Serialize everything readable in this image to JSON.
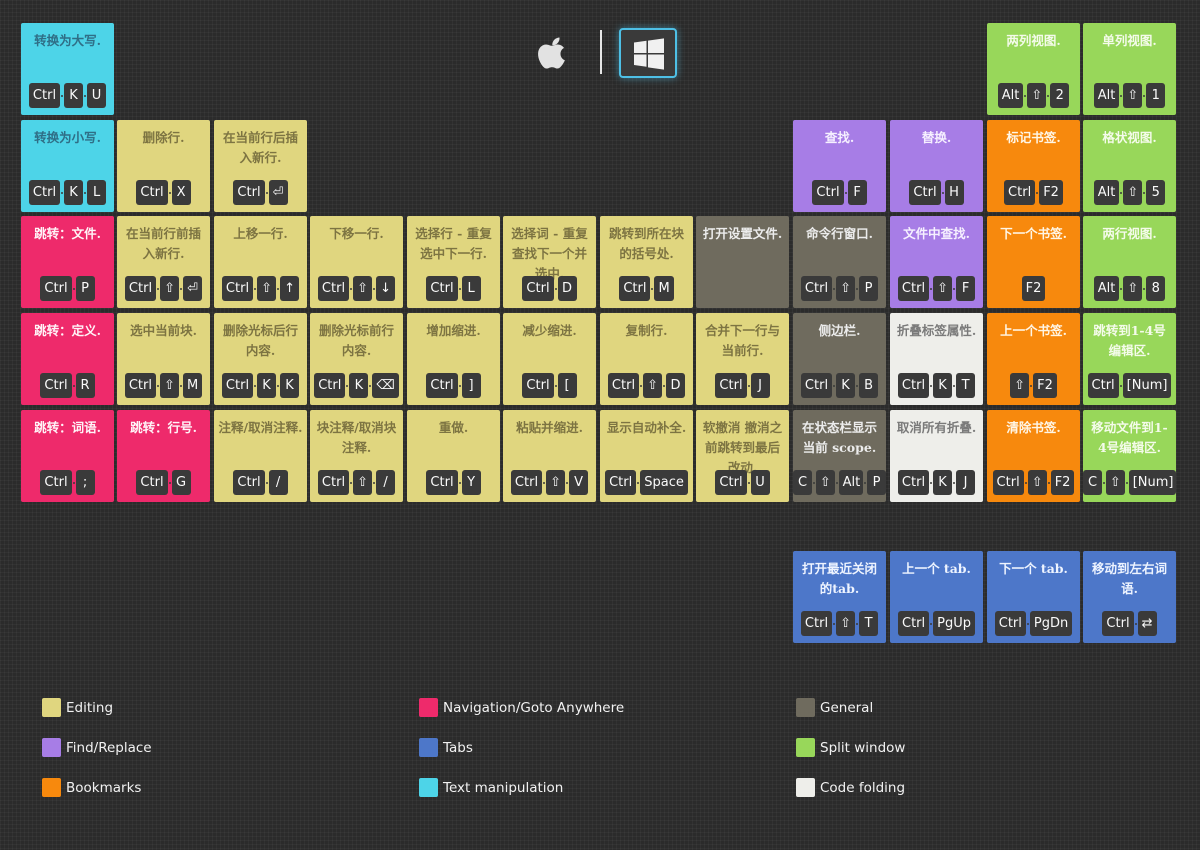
{
  "colors": {
    "editing": "#e0d67f",
    "navigation": "#ee2a6b",
    "general": "#6f6b5e",
    "find_replace": "#a77de6",
    "tabs": "#4d77c9",
    "split_window": "#98d75a",
    "bookmarks": "#f7890d",
    "text_manipulation": "#4dd4e8",
    "code_folding": "#eeeeea"
  },
  "platform": {
    "options": [
      "apple-icon",
      "windows-icon"
    ],
    "selected": "windows"
  },
  "tiles": [
    {
      "id": "to-upper",
      "category": "text_manipulation",
      "title": "转换为大写.",
      "keys": [
        "Ctrl",
        "K",
        "U"
      ]
    },
    {
      "id": "split-two-columns",
      "category": "split_window",
      "title": "两列视图.",
      "keys": [
        "Alt",
        "⇧",
        "2"
      ]
    },
    {
      "id": "split-single-column",
      "category": "split_window",
      "title": "单列视图.",
      "keys": [
        "Alt",
        "⇧",
        "1"
      ]
    },
    {
      "id": "to-lower",
      "category": "text_manipulation",
      "title": "转换为小写.",
      "keys": [
        "Ctrl",
        "K",
        "L"
      ]
    },
    {
      "id": "delete-line",
      "category": "editing",
      "title": "删除行.",
      "keys": [
        "Ctrl",
        "X"
      ]
    },
    {
      "id": "insert-line-after",
      "category": "editing",
      "title": "在当前行后插入新行.",
      "keys": [
        "Ctrl",
        "⏎"
      ]
    },
    {
      "id": "find",
      "category": "find_replace",
      "title": "查找.",
      "keys": [
        "Ctrl",
        "F"
      ]
    },
    {
      "id": "replace",
      "category": "find_replace",
      "title": "替换.",
      "keys": [
        "Ctrl",
        "H"
      ]
    },
    {
      "id": "toggle-bookmark",
      "category": "bookmarks",
      "title": "标记书签.",
      "keys": [
        "Ctrl",
        "F2"
      ]
    },
    {
      "id": "split-grid",
      "category": "split_window",
      "title": "格状视图.",
      "keys": [
        "Alt",
        "⇧",
        "5"
      ]
    },
    {
      "id": "goto-file",
      "category": "navigation",
      "title": "跳转：文件.",
      "keys": [
        "Ctrl",
        "P"
      ]
    },
    {
      "id": "insert-line-before",
      "category": "editing",
      "title": "在当前行前插入新行.",
      "keys": [
        "Ctrl",
        "⇧",
        "⏎"
      ]
    },
    {
      "id": "move-line-up",
      "category": "editing",
      "title": "上移一行.",
      "keys": [
        "Ctrl",
        "⇧",
        "↑"
      ]
    },
    {
      "id": "move-line-down",
      "category": "editing",
      "title": "下移一行.",
      "keys": [
        "Ctrl",
        "⇧",
        "↓"
      ]
    },
    {
      "id": "select-line",
      "category": "editing",
      "title": "选择行 - 重复选中下一行.",
      "keys": [
        "Ctrl",
        "L"
      ]
    },
    {
      "id": "select-word",
      "category": "editing",
      "title": "选择词 - 重复查找下一个并选中.",
      "keys": [
        "Ctrl",
        "D"
      ]
    },
    {
      "id": "goto-bracket",
      "category": "editing",
      "title": "跳转到所在块的括号处.",
      "keys": [
        "Ctrl",
        "M"
      ]
    },
    {
      "id": "open-settings",
      "category": "general",
      "title": "打开设置文件.",
      "keys": []
    },
    {
      "id": "command-palette",
      "category": "general",
      "title": "命令行窗口.",
      "keys": [
        "Ctrl",
        "⇧",
        "P"
      ]
    },
    {
      "id": "find-in-files",
      "category": "find_replace",
      "title": "文件中查找.",
      "keys": [
        "Ctrl",
        "⇧",
        "F"
      ]
    },
    {
      "id": "next-bookmark",
      "category": "bookmarks",
      "title": "下一个书签.",
      "keys": [
        "F2"
      ]
    },
    {
      "id": "split-two-rows",
      "category": "split_window",
      "title": "两行视图.",
      "keys": [
        "Alt",
        "⇧",
        "8"
      ]
    },
    {
      "id": "goto-definition",
      "category": "navigation",
      "title": "跳转：定义.",
      "keys": [
        "Ctrl",
        "R"
      ]
    },
    {
      "id": "select-block",
      "category": "editing",
      "title": "选中当前块.",
      "keys": [
        "Ctrl",
        "⇧",
        "M"
      ]
    },
    {
      "id": "delete-to-eol",
      "category": "editing",
      "title": "删除光标后行内容.",
      "keys": [
        "Ctrl",
        "K",
        "K"
      ]
    },
    {
      "id": "delete-to-bol",
      "category": "editing",
      "title": "删除光标前行内容.",
      "keys": [
        "Ctrl",
        "K",
        "⌫"
      ]
    },
    {
      "id": "indent",
      "category": "editing",
      "title": "增加缩进.",
      "keys": [
        "Ctrl",
        "]"
      ]
    },
    {
      "id": "outdent",
      "category": "editing",
      "title": "减少缩进.",
      "keys": [
        "Ctrl",
        "["
      ]
    },
    {
      "id": "duplicate-line",
      "category": "editing",
      "title": "复制行.",
      "keys": [
        "Ctrl",
        "⇧",
        "D"
      ]
    },
    {
      "id": "join-lines",
      "category": "editing",
      "title": "合并下一行与当前行.",
      "keys": [
        "Ctrl",
        "J"
      ]
    },
    {
      "id": "toggle-sidebar",
      "category": "general",
      "title": "侧边栏.",
      "keys": [
        "Ctrl",
        "K",
        "B"
      ]
    },
    {
      "id": "fold-tag-attributes",
      "category": "code_folding",
      "title": "折叠标签属性.",
      "keys": [
        "Ctrl",
        "K",
        "T"
      ]
    },
    {
      "id": "prev-bookmark",
      "category": "bookmarks",
      "title": "上一个书签.",
      "keys": [
        "⇧",
        "F2"
      ]
    },
    {
      "id": "focus-group-1-4",
      "category": "split_window",
      "title": "跳转到1-4号编辑区.",
      "keys": [
        "Ctrl",
        "[Num]"
      ]
    },
    {
      "id": "goto-symbol",
      "category": "navigation",
      "title": "跳转：词语.",
      "keys": [
        "Ctrl",
        ";"
      ]
    },
    {
      "id": "goto-line",
      "category": "navigation",
      "title": "跳转：行号.",
      "keys": [
        "Ctrl",
        "G"
      ]
    },
    {
      "id": "toggle-comment",
      "category": "editing",
      "title": "注释/取消注释.",
      "keys": [
        "Ctrl",
        "/"
      ]
    },
    {
      "id": "toggle-block-comment",
      "category": "editing",
      "title": "块注释/取消块注释.",
      "keys": [
        "Ctrl",
        "⇧",
        "/"
      ]
    },
    {
      "id": "redo",
      "category": "editing",
      "title": "重做.",
      "keys": [
        "Ctrl",
        "Y"
      ]
    },
    {
      "id": "paste-indent",
      "category": "editing",
      "title": "粘贴并缩进.",
      "keys": [
        "Ctrl",
        "⇧",
        "V"
      ]
    },
    {
      "id": "autocomplete",
      "category": "editing",
      "title": "显示自动补全.",
      "keys": [
        "Ctrl",
        "Space"
      ]
    },
    {
      "id": "soft-undo",
      "category": "editing",
      "title": "软撤消 撤消之前跳转到最后改动.",
      "keys": [
        "Ctrl",
        "U"
      ]
    },
    {
      "id": "show-scope",
      "category": "general",
      "title": "在状态栏显示当前 scope.",
      "keys": [
        "C",
        "⇧",
        "Alt",
        "P"
      ]
    },
    {
      "id": "unfold-all",
      "category": "code_folding",
      "title": "取消所有折叠.",
      "keys": [
        "Ctrl",
        "K",
        "J"
      ]
    },
    {
      "id": "clear-bookmarks",
      "category": "bookmarks",
      "title": "清除书签.",
      "keys": [
        "Ctrl",
        "⇧",
        "F2"
      ]
    },
    {
      "id": "move-file-to-group",
      "category": "split_window",
      "title": "移动文件到1-4号编辑区.",
      "keys": [
        "C",
        "⇧",
        "[Num]"
      ]
    },
    {
      "id": "reopen-closed-tab",
      "category": "tabs",
      "title": "打开最近关闭的tab.",
      "keys": [
        "Ctrl",
        "⇧",
        "T"
      ]
    },
    {
      "id": "prev-tab",
      "category": "tabs",
      "title": "上一个 tab.",
      "keys": [
        "Ctrl",
        "PgUp"
      ]
    },
    {
      "id": "next-tab",
      "category": "tabs",
      "title": "下一个 tab.",
      "keys": [
        "Ctrl",
        "PgDn"
      ]
    },
    {
      "id": "move-to-word",
      "category": "tabs",
      "title": "移动到左右词语.",
      "keys": [
        "Ctrl",
        "⇄"
      ]
    }
  ],
  "legend": [
    {
      "label": "Editing",
      "category": "editing"
    },
    {
      "label": "Navigation/Goto Anywhere",
      "category": "navigation"
    },
    {
      "label": "General",
      "category": "general"
    },
    {
      "label": "Find/Replace",
      "category": "find_replace"
    },
    {
      "label": "Tabs",
      "category": "tabs"
    },
    {
      "label": "Split window",
      "category": "split_window"
    },
    {
      "label": "Bookmarks",
      "category": "bookmarks"
    },
    {
      "label": "Text manipulation",
      "category": "text_manipulation"
    },
    {
      "label": "Code folding",
      "category": "code_folding"
    }
  ]
}
